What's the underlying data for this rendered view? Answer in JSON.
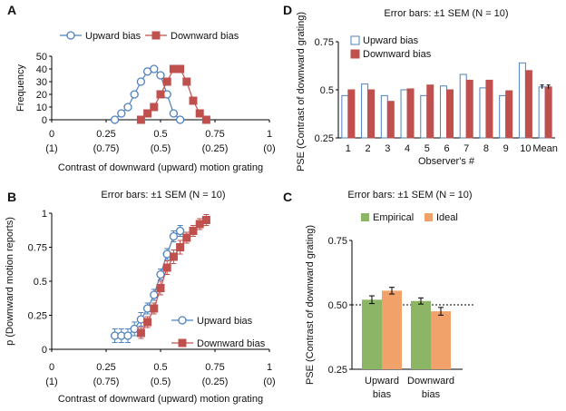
{
  "colors": {
    "upward": "#4f81bd",
    "downward": "#c0504d",
    "empirical": "#8db566",
    "ideal": "#f0a26a",
    "axis": "#000000"
  },
  "chart_data": [
    {
      "panel": "A",
      "type": "line",
      "title": "",
      "xlabel": "Contrast of downward (upward) motion grating",
      "ylabel": "Frequency",
      "xlim": [
        0,
        1
      ],
      "ylim": [
        0,
        50
      ],
      "xticks": [
        0,
        0.25,
        0.5,
        0.75,
        1
      ],
      "xtick_labels": [
        "0",
        "0.25",
        "0.5",
        "0.75",
        "1"
      ],
      "xtick_sublabels": [
        "(1)",
        "(0.75)",
        "(0.5)",
        "(0.25)",
        "(0)"
      ],
      "yticks": [
        0,
        10,
        20,
        30,
        40,
        50
      ],
      "legend": "top",
      "series": [
        {
          "name": "Upward bias",
          "marker": "circle",
          "x": [
            0.29,
            0.32,
            0.35,
            0.38,
            0.41,
            0.44,
            0.47,
            0.5,
            0.53,
            0.56,
            0.59
          ],
          "y": [
            0,
            5,
            10,
            20,
            30,
            38,
            40,
            35,
            20,
            5,
            0
          ]
        },
        {
          "name": "Downward bias",
          "marker": "square",
          "x": [
            0.41,
            0.44,
            0.47,
            0.5,
            0.53,
            0.56,
            0.59,
            0.62,
            0.65,
            0.68,
            0.71
          ],
          "y": [
            0,
            5,
            10,
            20,
            30,
            40,
            40,
            30,
            15,
            5,
            0
          ]
        }
      ]
    },
    {
      "panel": "B",
      "type": "line",
      "title": "Error bars: ±1 SEM (N = 10)",
      "xlabel": "Contrast of downward (upward) motion grating",
      "ylabel": "p (Downward motion  reports)",
      "xlim": [
        0,
        1
      ],
      "ylim": [
        0,
        1
      ],
      "xticks": [
        0,
        0.25,
        0.5,
        0.75,
        1
      ],
      "xtick_labels": [
        "0",
        "0.25",
        "0.5",
        "0.75",
        "1"
      ],
      "xtick_sublabels": [
        "(1)",
        "(0.75)",
        "(0.5)",
        "(0.25)",
        "(0)"
      ],
      "yticks": [
        0,
        0.25,
        0.5,
        0.75,
        1
      ],
      "ytick_labels": [
        "0",
        "0.25",
        "0.5",
        "0.75",
        "1"
      ],
      "legend": "bottom-right",
      "series": [
        {
          "name": "Upward bias",
          "marker": "circle",
          "x": [
            0.29,
            0.32,
            0.35,
            0.38,
            0.41,
            0.44,
            0.47,
            0.5,
            0.53,
            0.56,
            0.59
          ],
          "y": [
            0.1,
            0.1,
            0.1,
            0.15,
            0.22,
            0.3,
            0.4,
            0.55,
            0.7,
            0.83,
            0.87
          ],
          "err": [
            0.05,
            0.05,
            0.05,
            0.05,
            0.05,
            0.04,
            0.04,
            0.04,
            0.04,
            0.04,
            0.04
          ]
        },
        {
          "name": "Downward bias",
          "marker": "square",
          "x": [
            0.41,
            0.44,
            0.47,
            0.5,
            0.53,
            0.56,
            0.59,
            0.62,
            0.65,
            0.68,
            0.71
          ],
          "y": [
            0.12,
            0.2,
            0.3,
            0.45,
            0.6,
            0.68,
            0.75,
            0.82,
            0.87,
            0.92,
            0.95
          ],
          "err": [
            0.04,
            0.04,
            0.04,
            0.05,
            0.05,
            0.05,
            0.05,
            0.04,
            0.04,
            0.04,
            0.04
          ]
        }
      ]
    },
    {
      "panel": "C",
      "type": "bar",
      "title": "Error bars: ±1 SEM (N = 10)",
      "xlabel": "",
      "ylabel": "PSE (Contrast of downward grating)",
      "ylim": [
        0.25,
        0.75
      ],
      "yticks": [
        0.25,
        0.5,
        0.75
      ],
      "ytick_labels": [
        "0.25",
        "0.50",
        "0.75"
      ],
      "reference_line": 0.5,
      "legend": "top",
      "categories": [
        "Upward bias",
        "Downward bias"
      ],
      "category_lines": [
        [
          "Upward",
          "bias"
        ],
        [
          "Downward",
          "bias"
        ]
      ],
      "series": [
        {
          "name": "Empirical",
          "values": [
            0.52,
            0.515
          ],
          "err": [
            0.015,
            0.012
          ]
        },
        {
          "name": "Ideal",
          "values": [
            0.555,
            0.475
          ],
          "err": [
            0.013,
            0.015
          ]
        }
      ]
    },
    {
      "panel": "D",
      "type": "bar",
      "title": "Error bars: ±1 SEM (N = 10)",
      "xlabel": "Observer's #",
      "ylabel": "PSE (Contrast of downward grating)",
      "ylim": [
        0.25,
        0.75
      ],
      "yticks": [
        0.25,
        0.5,
        0.75
      ],
      "ytick_labels": [
        "0.25",
        "0.5",
        "0.75"
      ],
      "legend": "top-left",
      "categories": [
        "1",
        "2",
        "3",
        "4",
        "5",
        "6",
        "7",
        "8",
        "9",
        "10",
        "Mean"
      ],
      "series": [
        {
          "name": "Upward bias",
          "values": [
            0.47,
            0.53,
            0.47,
            0.5,
            0.47,
            0.52,
            0.58,
            0.51,
            0.47,
            0.64,
            0.515
          ]
        },
        {
          "name": "Downward bias",
          "values": [
            0.5,
            0.5,
            0.44,
            0.505,
            0.525,
            0.5,
            0.55,
            0.55,
            0.495,
            0.6,
            0.515
          ]
        }
      ],
      "mean_err": [
        0.01,
        0.01
      ]
    }
  ]
}
